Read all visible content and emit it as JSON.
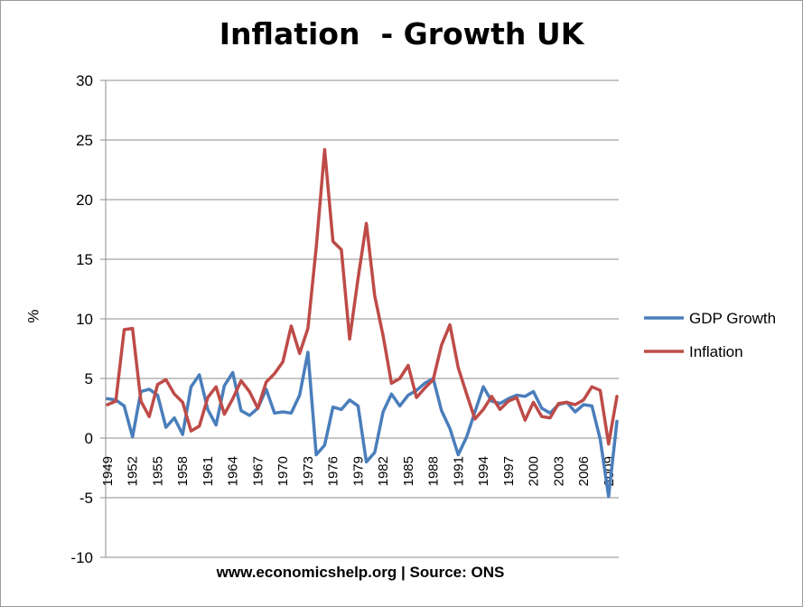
{
  "title": "Inflation  - Growth UK",
  "footer": "www.economicshelp.org | Source: ONS",
  "chart_data": {
    "type": "line",
    "ylabel": "%",
    "xlabel": "",
    "ylim": [
      -10,
      30
    ],
    "yticks": [
      30,
      25,
      20,
      15,
      10,
      5,
      0,
      -5,
      -10
    ],
    "grid": "horizontal",
    "legend_position": "right",
    "x": [
      1949,
      1950,
      1951,
      1952,
      1953,
      1954,
      1955,
      1956,
      1957,
      1958,
      1959,
      1960,
      1961,
      1962,
      1963,
      1964,
      1965,
      1966,
      1967,
      1968,
      1969,
      1970,
      1971,
      1972,
      1973,
      1974,
      1975,
      1976,
      1977,
      1978,
      1979,
      1980,
      1981,
      1982,
      1983,
      1984,
      1985,
      1986,
      1987,
      1988,
      1989,
      1990,
      1991,
      1992,
      1993,
      1994,
      1995,
      1996,
      1997,
      1998,
      1999,
      2000,
      2001,
      2002,
      2003,
      2004,
      2005,
      2006,
      2007,
      2008,
      2009,
      2010
    ],
    "x_tick_labels": [
      "1949",
      "1952",
      "1955",
      "1958",
      "1961",
      "1964",
      "1967",
      "1970",
      "1973",
      "1976",
      "1979",
      "1982",
      "1985",
      "1988",
      "1991",
      "1994",
      "1997",
      "2000",
      "2003",
      "2006",
      "2009"
    ],
    "series": [
      {
        "name": "GDP Growth",
        "color": "#4a7ebb",
        "values": [
          3.3,
          3.2,
          2.7,
          0.1,
          3.9,
          4.1,
          3.6,
          0.9,
          1.7,
          0.3,
          4.3,
          5.3,
          2.4,
          1.1,
          4.4,
          5.5,
          2.3,
          1.9,
          2.5,
          4.1,
          2.1,
          2.2,
          2.1,
          3.6,
          7.2,
          -1.4,
          -0.6,
          2.6,
          2.4,
          3.2,
          2.7,
          -2.0,
          -1.2,
          2.2,
          3.7,
          2.7,
          3.6,
          4.0,
          4.6,
          5.0,
          2.3,
          0.8,
          -1.4,
          0.1,
          2.2,
          4.3,
          3.1,
          2.9,
          3.3,
          3.6,
          3.5,
          3.9,
          2.5,
          2.1,
          2.8,
          3.0,
          2.2,
          2.8,
          2.7,
          -0.1,
          -4.9,
          1.4
        ]
      },
      {
        "name": "Inflation",
        "color": "#be4b48",
        "values": [
          2.8,
          3.1,
          9.1,
          9.2,
          3.1,
          1.8,
          4.5,
          4.9,
          3.7,
          3.0,
          0.6,
          1.0,
          3.4,
          4.3,
          2.0,
          3.3,
          4.8,
          3.9,
          2.5,
          4.7,
          5.4,
          6.4,
          9.4,
          7.1,
          9.2,
          16.0,
          24.2,
          16.5,
          15.8,
          8.3,
          13.4,
          18.0,
          11.9,
          8.6,
          4.6,
          5.0,
          6.1,
          3.4,
          4.2,
          4.9,
          7.8,
          9.5,
          5.9,
          3.7,
          1.6,
          2.4,
          3.5,
          2.4,
          3.1,
          3.4,
          1.5,
          3.0,
          1.8,
          1.7,
          2.9,
          3.0,
          2.8,
          3.2,
          4.3,
          4.0,
          -0.5,
          3.5
        ]
      }
    ]
  }
}
